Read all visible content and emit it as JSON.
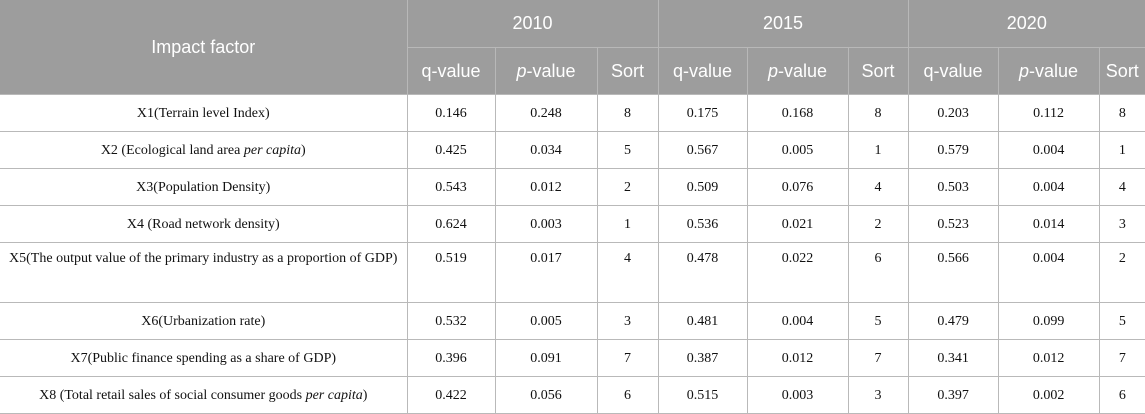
{
  "table": {
    "header": {
      "factor": "Impact factor",
      "years": [
        "2010",
        "2015",
        "2020"
      ],
      "sub": [
        "q-value",
        "p",
        "-value",
        "Sort"
      ]
    },
    "rows": [
      {
        "pre": "X1(Terrain level Index)",
        "em": "",
        "post": "",
        "vals": [
          "0.146",
          "0.248",
          "8",
          "0.175",
          "0.168",
          "8",
          "0.203",
          "0.112",
          "8"
        ]
      },
      {
        "pre": "X2 (Ecological land area ",
        "em": "per capita",
        "post": ")",
        "vals": [
          "0.425",
          "0.034",
          "5",
          "0.567",
          "0.005",
          "1",
          "0.579",
          "0.004",
          "1"
        ]
      },
      {
        "pre": "X3(Population Density)",
        "em": "",
        "post": "",
        "vals": [
          "0.543",
          "0.012",
          "2",
          "0.509",
          "0.076",
          "4",
          "0.503",
          "0.004",
          "4"
        ]
      },
      {
        "pre": "X4 (Road network density)",
        "em": "",
        "post": "",
        "vals": [
          "0.624",
          "0.003",
          "1",
          "0.536",
          "0.021",
          "2",
          "0.523",
          "0.014",
          "3"
        ]
      },
      {
        "pre": "X5(The output value of the primary industry as a proportion of GDP)",
        "em": "",
        "post": "",
        "vals": [
          "0.519",
          "0.017",
          "4",
          "0.478",
          "0.022",
          "6",
          "0.566",
          "0.004",
          "2"
        ]
      },
      {
        "pre": "X6(Urbanization rate)",
        "em": "",
        "post": "",
        "vals": [
          "0.532",
          "0.005",
          "3",
          "0.481",
          "0.004",
          "5",
          "0.479",
          "0.099",
          "5"
        ]
      },
      {
        "pre": "X7(Public finance spending as a share of GDP)",
        "em": "",
        "post": "",
        "vals": [
          "0.396",
          "0.091",
          "7",
          "0.387",
          "0.012",
          "7",
          "0.341",
          "0.012",
          "7"
        ]
      },
      {
        "pre": "X8 (Total retail sales of social consumer goods ",
        "em": "per capita",
        "post": ")",
        "vals": [
          "0.422",
          "0.056",
          "6",
          "0.515",
          "0.003",
          "3",
          "0.397",
          "0.002",
          "6"
        ]
      }
    ]
  }
}
